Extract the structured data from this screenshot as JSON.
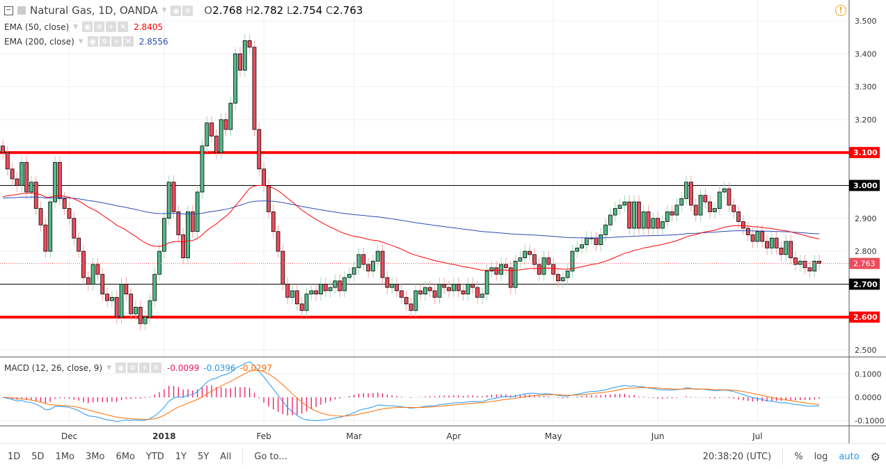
{
  "header": {
    "symbol": "Natural Gas, 1D, OANDA",
    "open_label": "O",
    "open": "2.768",
    "high_label": "H",
    "high": "2.782",
    "low_label": "L",
    "low": "2.754",
    "close_label": "C",
    "close": "2.763"
  },
  "indicators": [
    {
      "label": "EMA (50, close)",
      "value": "2.8405",
      "color": "#ff0000"
    },
    {
      "label": "EMA (200, close)",
      "value": "2.8556",
      "color": "#2a4bb5"
    }
  ],
  "macd": {
    "label": "MACD (12, 26, close, 9)",
    "hist": "-0.0099",
    "macd": "-0.0396",
    "signal": "-0.0297",
    "hist_color": "#f0135f",
    "macd_color": "#2196f3",
    "signal_color": "#ff6d00"
  },
  "chart_data": {
    "type": "candlestick",
    "ylim": [
      2.48,
      3.52
    ],
    "price_ticks": [
      "3.500",
      "3.400",
      "3.300",
      "3.200",
      "3.100",
      "3.000",
      "2.900",
      "2.800",
      "2.700",
      "2.600",
      "2.500"
    ],
    "macd_ticks": [
      "0.1000",
      "0.0000",
      "-0.1000"
    ],
    "x_labels": [
      "Dec",
      "2018",
      "Feb",
      "Mar",
      "Apr",
      "May",
      "Jun",
      "Jul"
    ],
    "x_label_index": [
      14,
      34,
      55,
      74,
      95,
      116,
      138,
      159
    ],
    "levels": [
      {
        "price": 3.1,
        "label": "3.100",
        "color": "#ff0000",
        "weight": "heavy"
      },
      {
        "price": 3.0,
        "label": "3.000",
        "color": "#000000",
        "weight": "thin"
      },
      {
        "price": 2.7,
        "label": "2.700",
        "color": "#000000",
        "weight": "thin"
      },
      {
        "price": 2.6,
        "label": "2.600",
        "color": "#ff0000",
        "weight": "heavy"
      }
    ],
    "last_price": 2.763,
    "last_label": "2.763",
    "closes": [
      3.1,
      3.05,
      3.02,
      3.0,
      3.07,
      2.98,
      3.01,
      2.93,
      2.88,
      2.8,
      2.95,
      3.07,
      2.96,
      2.93,
      2.9,
      2.84,
      2.8,
      2.72,
      2.7,
      2.76,
      2.73,
      2.67,
      2.65,
      2.66,
      2.6,
      2.7,
      2.67,
      2.61,
      2.63,
      2.58,
      2.6,
      2.65,
      2.73,
      2.8,
      2.9,
      3.01,
      2.92,
      2.85,
      2.78,
      2.92,
      2.86,
      2.98,
      3.12,
      3.19,
      3.15,
      3.1,
      3.2,
      3.17,
      3.25,
      3.4,
      3.35,
      3.44,
      3.42,
      3.17,
      3.05,
      3.0,
      2.92,
      2.86,
      2.8,
      2.7,
      2.66,
      2.68,
      2.64,
      2.62,
      2.67,
      2.68,
      2.67,
      2.7,
      2.68,
      2.69,
      2.71,
      2.68,
      2.72,
      2.73,
      2.75,
      2.79,
      2.76,
      2.74,
      2.77,
      2.8,
      2.72,
      2.69,
      2.7,
      2.68,
      2.66,
      2.64,
      2.62,
      2.68,
      2.67,
      2.69,
      2.68,
      2.66,
      2.7,
      2.69,
      2.68,
      2.7,
      2.68,
      2.67,
      2.7,
      2.69,
      2.66,
      2.67,
      2.74,
      2.75,
      2.73,
      2.76,
      2.75,
      2.69,
      2.77,
      2.78,
      2.8,
      2.79,
      2.76,
      2.73,
      2.78,
      2.76,
      2.73,
      2.71,
      2.72,
      2.74,
      2.8,
      2.81,
      2.82,
      2.84,
      2.84,
      2.82,
      2.85,
      2.88,
      2.91,
      2.93,
      2.94,
      2.95,
      2.87,
      2.95,
      2.87,
      2.92,
      2.87,
      2.9,
      2.87,
      2.89,
      2.92,
      2.91,
      2.94,
      2.96,
      3.01,
      2.94,
      2.91,
      2.97,
      2.95,
      2.92,
      2.93,
      2.98,
      2.99,
      2.94,
      2.92,
      2.89,
      2.87,
      2.85,
      2.83,
      2.86,
      2.83,
      2.81,
      2.84,
      2.81,
      2.79,
      2.83,
      2.78,
      2.76,
      2.77,
      2.75,
      2.74,
      2.77,
      2.763
    ]
  },
  "toolbar": {
    "ranges": [
      "1D",
      "5D",
      "1Mo",
      "3Mo",
      "6Mo",
      "YTD",
      "1Y",
      "5Y",
      "All"
    ],
    "goto": "Go to...",
    "time": "20:38:20 (UTC)",
    "percent": "%",
    "log": "log",
    "auto": "auto"
  }
}
